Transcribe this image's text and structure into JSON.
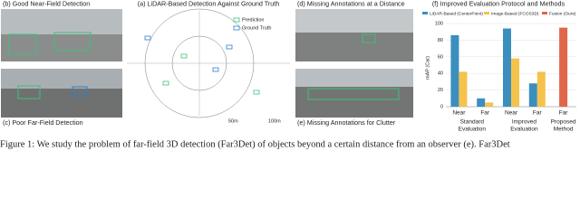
{
  "panels": {
    "b": {
      "title": "(b) Good Near-Field Detection"
    },
    "c": {
      "title": "(c) Poor Far-Field Detection"
    },
    "a": {
      "title": "(a) LiDAR-Based Detection Against Ground Truth",
      "legend": [
        "Prediction",
        "Ground Truth"
      ],
      "ring_labels": [
        "50m",
        "100m"
      ]
    },
    "d": {
      "title": "(d) Missing Annotations at a Distance"
    },
    "e": {
      "title": "(e) Missing Annotations for Clutter"
    }
  },
  "chart_data": {
    "type": "bar",
    "title": "(f) Improved Evaluation Protocol and Methods",
    "y_label": "mAP (Car)",
    "categories": [
      "Near",
      "Far",
      "Near",
      "Far",
      "Far"
    ],
    "groups": [
      {
        "lines": [
          "Standard",
          "Evaluation"
        ],
        "span": [
          0,
          1
        ]
      },
      {
        "lines": [
          "Improved",
          "Evaluation"
        ],
        "span": [
          2,
          3
        ]
      },
      {
        "lines": [
          "Proposed",
          "Method"
        ],
        "span": [
          4,
          4
        ]
      }
    ],
    "series": [
      {
        "name": "LiDAR-Based (CenterPoint)",
        "color": "#3a8fbf",
        "values": [
          86,
          10,
          94,
          28,
          null
        ]
      },
      {
        "name": "Image-Based (FCOS3D)",
        "color": "#f5c24c",
        "values": [
          42,
          5,
          58,
          42,
          null
        ]
      },
      {
        "name": "Fusion (Ours)",
        "color": "#e0664a",
        "values": [
          null,
          null,
          null,
          null,
          95
        ]
      }
    ],
    "ylim": [
      0,
      100
    ],
    "yticks": [
      0,
      20,
      40,
      60,
      80,
      100
    ],
    "grid": true
  },
  "caption": "Figure 1: We study the problem of far-field 3D detection (Far3Det) of objects beyond a certain distance from an observer (e). Far3Det"
}
